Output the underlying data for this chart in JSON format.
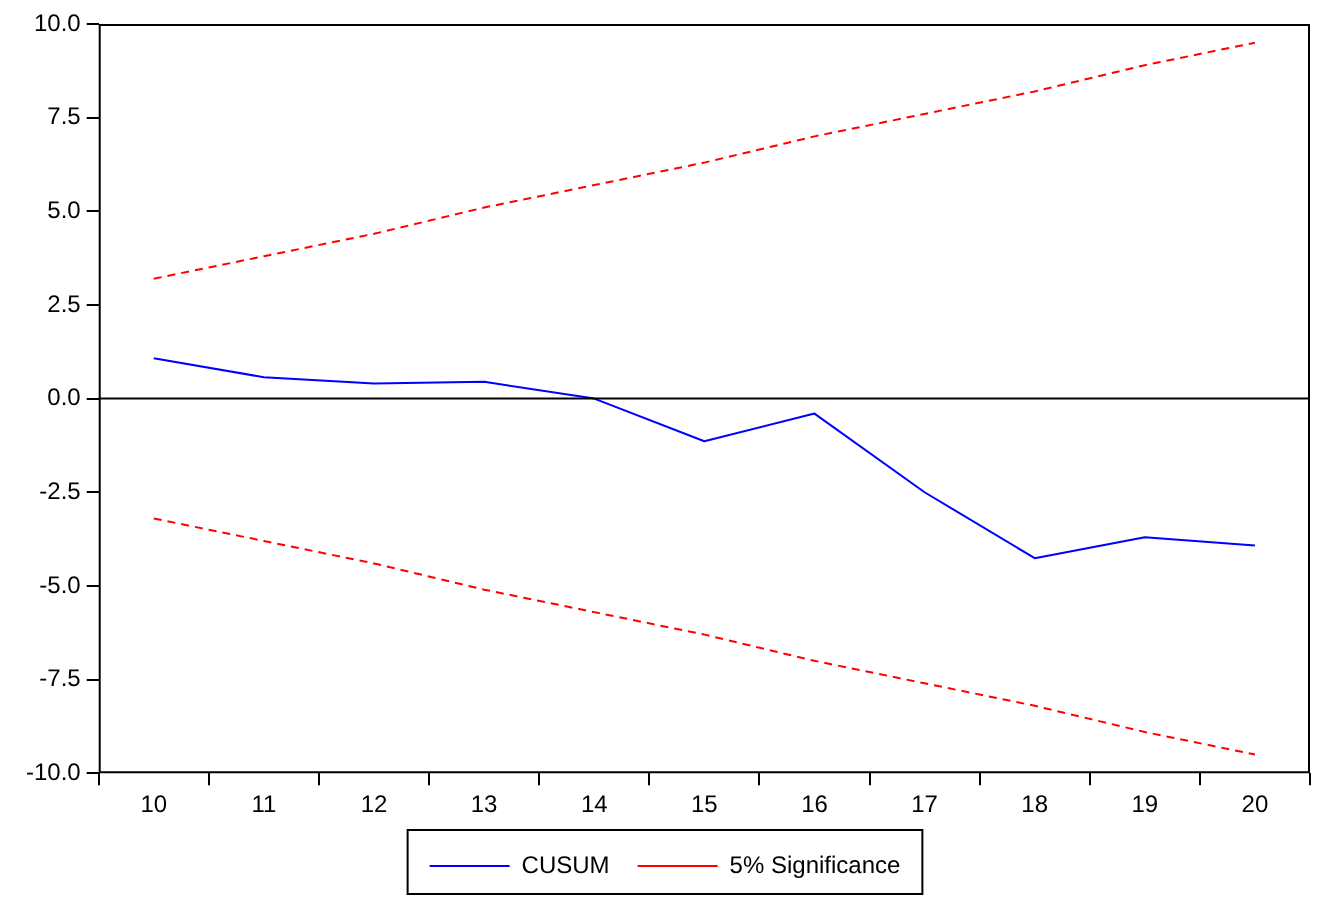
{
  "chart_data": {
    "type": "line",
    "categories": [
      "10",
      "11",
      "12",
      "13",
      "14",
      "15",
      "16",
      "17",
      "18",
      "19",
      "20"
    ],
    "series": [
      {
        "name": "CUSUM",
        "color": "#0000ff",
        "line_style": "solid",
        "values": [
          1.08,
          0.57,
          0.4,
          0.45,
          0.0,
          -1.14,
          -0.4,
          -2.5,
          -4.26,
          -3.7,
          -3.92
        ]
      },
      {
        "name": "5% Significance",
        "color": "#ff0000",
        "line_style": "dashed",
        "values": [
          3.2,
          3.8,
          4.4,
          5.1,
          5.7,
          6.3,
          7.0,
          7.6,
          8.2,
          8.9,
          9.5
        ]
      },
      {
        "color": "#ff0000",
        "line_style": "dashed",
        "values": [
          -3.2,
          -3.8,
          -4.4,
          -5.1,
          -5.7,
          -6.3,
          -7.0,
          -7.6,
          -8.2,
          -8.9,
          -9.5
        ]
      }
    ],
    "ylim": [
      -10,
      10
    ],
    "yticks": [
      {
        "value": -10,
        "label": "-10.0"
      },
      {
        "value": -7.5,
        "label": "-7.5"
      },
      {
        "value": -5,
        "label": "-5.0"
      },
      {
        "value": -2.5,
        "label": "-2.5"
      },
      {
        "value": 0,
        "label": "0.0"
      },
      {
        "value": 2.5,
        "label": "2.5"
      },
      {
        "value": 5,
        "label": "5.0"
      },
      {
        "value": 7.5,
        "label": "7.5"
      },
      {
        "value": 10,
        "label": "10.0"
      }
    ],
    "ref_lines": [
      {
        "axis": "y",
        "value": 0,
        "color": "#000000"
      }
    ],
    "grid": false,
    "legend": "bottom",
    "marker": "none"
  }
}
